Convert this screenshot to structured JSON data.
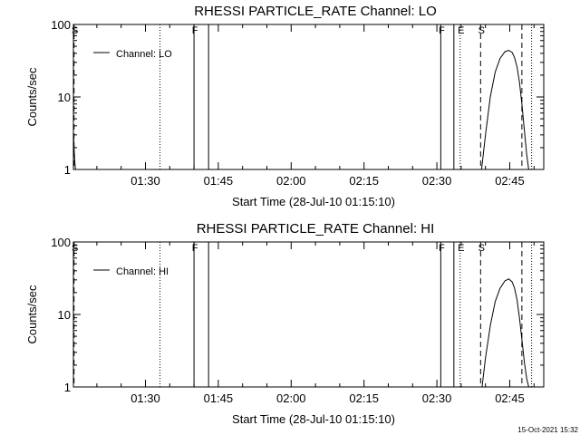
{
  "footer": {
    "timestamp": "15-Oct-2021 15:32"
  },
  "chart_data": [
    {
      "type": "line",
      "title": "RHESSI PARTICLE_RATE Channel: LO",
      "xlabel": "Start Time (28-Jul-10 01:15:10)",
      "ylabel": "Counts/sec",
      "yscale": "log",
      "ylim": [
        1,
        100
      ],
      "xlim_min": [
        15.17,
        112.0
      ],
      "x_tick_values": [
        30,
        45,
        60,
        75,
        90,
        105
      ],
      "x_tick_labels": [
        "01:30",
        "01:45",
        "02:00",
        "02:15",
        "02:30",
        "02:45"
      ],
      "y_tick_values": [
        1,
        10,
        100
      ],
      "y_tick_labels": [
        "1",
        "10",
        "100"
      ],
      "legend": {
        "label": "Channel: LO",
        "position": "top-left"
      },
      "events": [
        {
          "x": 15.3,
          "label": "S",
          "style": "dashed"
        },
        {
          "x": 33.0,
          "label": "",
          "style": "dotted"
        },
        {
          "x": 40.0,
          "label": "F",
          "style": "solid"
        },
        {
          "x": 43.0,
          "label": "",
          "style": "solid"
        },
        {
          "x": 90.8,
          "label": "F",
          "style": "solid"
        },
        {
          "x": 93.5,
          "label": "",
          "style": "solid"
        },
        {
          "x": 94.8,
          "label": "E",
          "style": "dotted"
        },
        {
          "x": 99.0,
          "label": "S",
          "style": "dashed"
        },
        {
          "x": 107.5,
          "label": "",
          "style": "dashed"
        },
        {
          "x": 109.5,
          "label": "",
          "style": "dotted"
        }
      ],
      "series": [
        {
          "name": "Channel: LO",
          "segments": [
            {
              "x": [
                15.2,
                15.3,
                15.45,
                15.6
              ],
              "y": [
                3.0,
                2.0,
                1.3,
                1.0
              ]
            },
            {
              "x": [
                99.2,
                100.0,
                101.0,
                102.0,
                103.0,
                104.0,
                104.8,
                105.5,
                106.0,
                106.5,
                107.0,
                107.5,
                108.0,
                108.5,
                108.9
              ],
              "y": [
                1.0,
                3.0,
                10.0,
                22.0,
                34.0,
                42.0,
                44.0,
                41.0,
                35.0,
                26.0,
                16.0,
                8.0,
                3.5,
                1.6,
                1.0
              ]
            }
          ]
        }
      ]
    },
    {
      "type": "line",
      "title": "RHESSI PARTICLE_RATE Channel: HI",
      "xlabel": "Start Time (28-Jul-10 01:15:10)",
      "ylabel": "Counts/sec",
      "yscale": "log",
      "ylim": [
        1,
        100
      ],
      "xlim_min": [
        15.17,
        112.0
      ],
      "x_tick_values": [
        30,
        45,
        60,
        75,
        90,
        105
      ],
      "x_tick_labels": [
        "01:30",
        "01:45",
        "02:00",
        "02:15",
        "02:30",
        "02:45"
      ],
      "y_tick_values": [
        1,
        10,
        100
      ],
      "y_tick_labels": [
        "1",
        "10",
        "100"
      ],
      "legend": {
        "label": "Channel: HI",
        "position": "top-left"
      },
      "events": [
        {
          "x": 15.3,
          "label": "S",
          "style": "dashed"
        },
        {
          "x": 33.0,
          "label": "",
          "style": "dotted"
        },
        {
          "x": 40.0,
          "label": "F",
          "style": "solid"
        },
        {
          "x": 43.0,
          "label": "",
          "style": "solid"
        },
        {
          "x": 90.8,
          "label": "F",
          "style": "solid"
        },
        {
          "x": 93.5,
          "label": "",
          "style": "solid"
        },
        {
          "x": 94.8,
          "label": "E",
          "style": "dotted"
        },
        {
          "x": 99.0,
          "label": "S",
          "style": "dashed"
        },
        {
          "x": 107.5,
          "label": "",
          "style": "dashed"
        },
        {
          "x": 109.5,
          "label": "",
          "style": "dotted"
        }
      ],
      "series": [
        {
          "name": "Channel: HI",
          "segments": [
            {
              "x": [
                99.3,
                100.0,
                101.0,
                102.0,
                103.0,
                104.0,
                104.8,
                105.5,
                106.0,
                106.5,
                107.0,
                107.5,
                108.0,
                108.5,
                108.9
              ],
              "y": [
                1.0,
                2.5,
                7.0,
                15.0,
                23.0,
                29.0,
                31.0,
                28.0,
                23.0,
                16.0,
                9.0,
                4.5,
                2.2,
                1.3,
                1.0
              ]
            }
          ]
        }
      ]
    }
  ]
}
